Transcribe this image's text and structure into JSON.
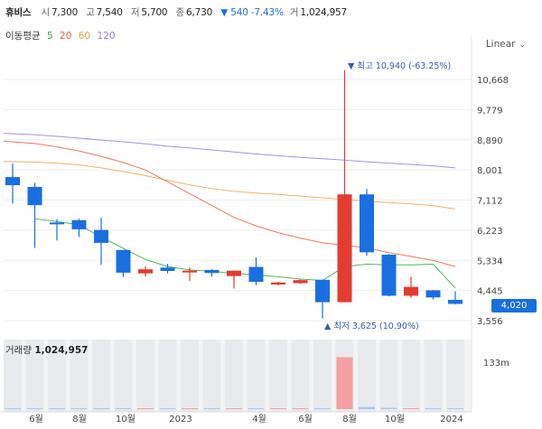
{
  "header": {
    "name": "휴비스",
    "open_label": "시",
    "open": "7,300",
    "high_label": "고",
    "high": "7,540",
    "low_label": "저",
    "low": "5,700",
    "close_label": "종",
    "close": "6,730",
    "change": "▼ 540 -7.43%",
    "volume_label": "거",
    "volume": "1,024,957"
  },
  "ma_legend": {
    "label": "이동평균",
    "items": [
      {
        "label": "5",
        "color": "#2faa3c"
      },
      {
        "label": "20",
        "color": "#e8604f"
      },
      {
        "label": "60",
        "color": "#f0a14d"
      },
      {
        "label": "120",
        "color": "#9a7be0"
      }
    ]
  },
  "scale_button": "Linear",
  "price_badge": "4,020",
  "colors": {
    "up": "#e33b2f",
    "down": "#1a6fe0",
    "volume_up": "#f4a0a0",
    "volume_down": "#a9c7f0"
  },
  "chart_data": {
    "type": "candlestick",
    "y_ticks": [
      "10,668",
      "9,779",
      "8,890",
      "8,001",
      "7,112",
      "6,223",
      "5,334",
      "4,445",
      "3,556"
    ],
    "y_tick_values": [
      10668,
      9779,
      8890,
      8001,
      7112,
      6223,
      5334,
      4445,
      3556
    ],
    "x_ticks": [
      "6월",
      "8월",
      "10월",
      "2023",
      "4월",
      "6월",
      "8월",
      "10월",
      "2024"
    ],
    "annotations": {
      "high": "▼ 최고 10,940 (-63.25%)",
      "low": "▲ 최저 3,625 (10.90%)"
    },
    "volume_title": "거래량",
    "volume_value": "1,024,957",
    "volume_axis_label": "133m",
    "candles": [
      {
        "o": 7790,
        "h": 8190,
        "l": 7010,
        "c": 7550
      },
      {
        "o": 7500,
        "h": 7620,
        "l": 5700,
        "c": 6960
      },
      {
        "o": 6450,
        "h": 6550,
        "l": 5920,
        "c": 6420
      },
      {
        "o": 6520,
        "h": 6560,
        "l": 6020,
        "c": 6250
      },
      {
        "o": 6230,
        "h": 6590,
        "l": 5200,
        "c": 5850
      },
      {
        "o": 5640,
        "h": 5650,
        "l": 4840,
        "c": 4970
      },
      {
        "o": 4950,
        "h": 5160,
        "l": 4850,
        "c": 5070
      },
      {
        "o": 5120,
        "h": 5230,
        "l": 4950,
        "c": 5020
      },
      {
        "o": 4980,
        "h": 5120,
        "l": 4730,
        "c": 5030
      },
      {
        "o": 5050,
        "h": 5070,
        "l": 4860,
        "c": 4960
      },
      {
        "o": 4870,
        "h": 5010,
        "l": 4500,
        "c": 5030
      },
      {
        "o": 5140,
        "h": 5420,
        "l": 4600,
        "c": 4700
      },
      {
        "o": 4620,
        "h": 4700,
        "l": 4590,
        "c": 4680
      },
      {
        "o": 4660,
        "h": 4770,
        "l": 4640,
        "c": 4750
      },
      {
        "o": 4760,
        "h": 4770,
        "l": 3625,
        "c": 4100
      },
      {
        "o": 4100,
        "h": 10940,
        "l": 4100,
        "c": 7280
      },
      {
        "o": 7280,
        "h": 7440,
        "l": 5470,
        "c": 5570
      },
      {
        "o": 5500,
        "h": 5520,
        "l": 4270,
        "c": 4290
      },
      {
        "o": 4290,
        "h": 4850,
        "l": 4230,
        "c": 4550
      },
      {
        "o": 4450,
        "h": 4460,
        "l": 4180,
        "c": 4240
      },
      {
        "o": 4170,
        "h": 4420,
        "l": 4030,
        "c": 4050
      }
    ],
    "ma5": [
      [
        1,
        6560
      ],
      [
        2,
        6480
      ],
      [
        3,
        6380
      ],
      [
        4,
        6020
      ],
      [
        5,
        5690
      ],
      [
        6,
        5360
      ],
      [
        7,
        5150
      ],
      [
        8,
        5050
      ],
      [
        9,
        5010
      ],
      [
        10,
        4950
      ],
      [
        11,
        4900
      ],
      [
        12,
        4850
      ],
      [
        13,
        4780
      ],
      [
        14,
        4740
      ],
      [
        15,
        5150
      ],
      [
        16,
        5220
      ],
      [
        17,
        5200
      ],
      [
        18,
        5200
      ],
      [
        19,
        5220
      ],
      [
        20,
        4520
      ]
    ],
    "ma20": [
      [
        0,
        8850
      ],
      [
        1,
        8780
      ],
      [
        2,
        8680
      ],
      [
        3,
        8560
      ],
      [
        4,
        8400
      ],
      [
        5,
        8220
      ],
      [
        6,
        8000
      ],
      [
        7,
        7650
      ],
      [
        8,
        7300
      ],
      [
        9,
        6950
      ],
      [
        10,
        6600
      ],
      [
        11,
        6350
      ],
      [
        12,
        6150
      ],
      [
        13,
        5990
      ],
      [
        14,
        5850
      ],
      [
        15,
        5780
      ],
      [
        16,
        5700
      ],
      [
        17,
        5560
      ],
      [
        18,
        5450
      ],
      [
        19,
        5330
      ],
      [
        20,
        5150
      ]
    ],
    "ma60": [
      [
        0,
        8250
      ],
      [
        1,
        8230
      ],
      [
        2,
        8200
      ],
      [
        3,
        8150
      ],
      [
        4,
        8060
      ],
      [
        5,
        7950
      ],
      [
        6,
        7830
      ],
      [
        7,
        7690
      ],
      [
        8,
        7560
      ],
      [
        9,
        7450
      ],
      [
        10,
        7370
      ],
      [
        11,
        7320
      ],
      [
        12,
        7280
      ],
      [
        13,
        7230
      ],
      [
        14,
        7180
      ],
      [
        15,
        7130
      ],
      [
        16,
        7080
      ],
      [
        17,
        7040
      ],
      [
        18,
        7000
      ],
      [
        19,
        6950
      ],
      [
        20,
        6850
      ]
    ],
    "ma120": [
      [
        0,
        9080
      ],
      [
        1,
        9040
      ],
      [
        2,
        8990
      ],
      [
        3,
        8940
      ],
      [
        4,
        8880
      ],
      [
        5,
        8830
      ],
      [
        6,
        8770
      ],
      [
        7,
        8700
      ],
      [
        8,
        8650
      ],
      [
        9,
        8590
      ],
      [
        10,
        8530
      ],
      [
        11,
        8470
      ],
      [
        12,
        8420
      ],
      [
        13,
        8370
      ],
      [
        14,
        8330
      ],
      [
        15,
        8290
      ],
      [
        16,
        8240
      ],
      [
        17,
        8200
      ],
      [
        18,
        8160
      ],
      [
        19,
        8120
      ],
      [
        20,
        8060
      ]
    ],
    "volume_millions": [
      0.8,
      0.6,
      0.3,
      0.3,
      0.4,
      0.3,
      0.3,
      0.4,
      0.4,
      0.2,
      1.2,
      0.4,
      0.2,
      0.2,
      0.2,
      108.0,
      4.5,
      2.6,
      1.2,
      1.0,
      0.9
    ],
    "volume_max_millions": 133
  }
}
